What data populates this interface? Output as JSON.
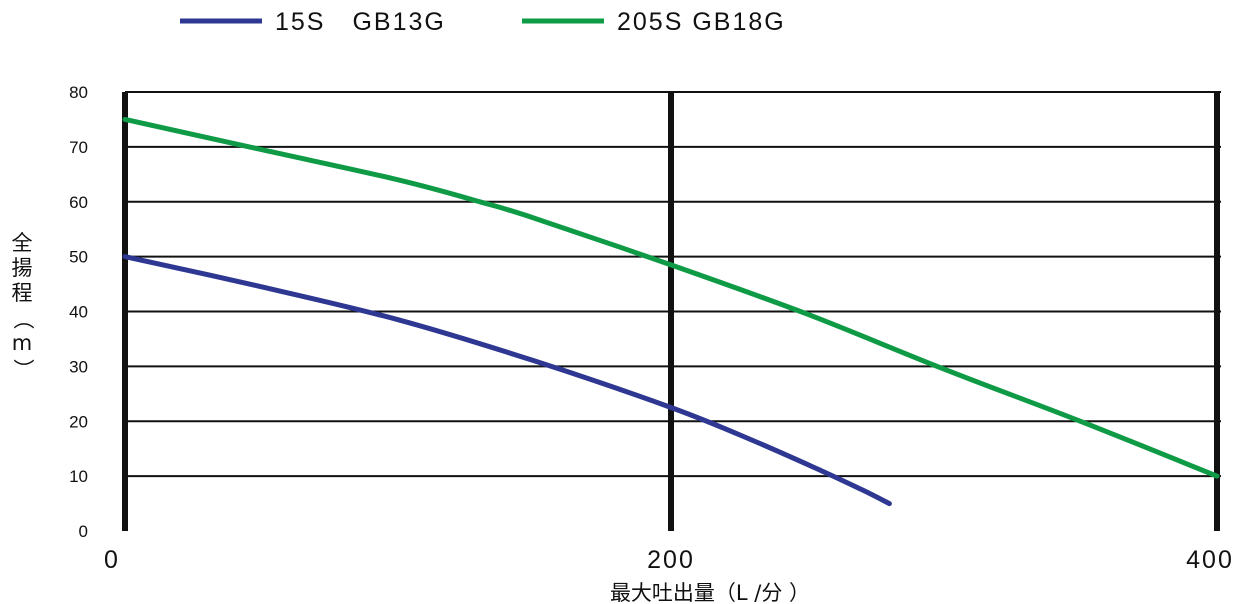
{
  "chart_data": {
    "type": "line",
    "xlabel": "最大吐出量（L /分 ）",
    "ylabel": "全揚程（m）",
    "xlim": [
      0,
      400
    ],
    "ylim": [
      0,
      80
    ],
    "x_ticks": [
      "0",
      "200",
      "400"
    ],
    "y_ticks": [
      "0",
      "10",
      "20",
      "30",
      "40",
      "50",
      "60",
      "70",
      "80"
    ],
    "grid": "horizontal lines every 10 m; vertical lines at 0, 200, 400",
    "legend_position": "top-left",
    "series": [
      {
        "name": "15S　GB13G",
        "color": "#2e3791",
        "points": [
          [
            0,
            50
          ],
          [
            50,
            44.5
          ],
          [
            100,
            38.5
          ],
          [
            150,
            31
          ],
          [
            200,
            22.5
          ],
          [
            230,
            16.5
          ],
          [
            255,
            11
          ],
          [
            270,
            7.5
          ],
          [
            280,
            5
          ]
        ]
      },
      {
        "name": "205S GB18G",
        "color": "#0f9b46",
        "points": [
          [
            0,
            75
          ],
          [
            50,
            69.5
          ],
          [
            100,
            64
          ],
          [
            130,
            60
          ],
          [
            150,
            57
          ],
          [
            200,
            48.5
          ],
          [
            250,
            39.5
          ],
          [
            300,
            29.5
          ],
          [
            350,
            20
          ],
          [
            400,
            10
          ]
        ]
      }
    ]
  }
}
